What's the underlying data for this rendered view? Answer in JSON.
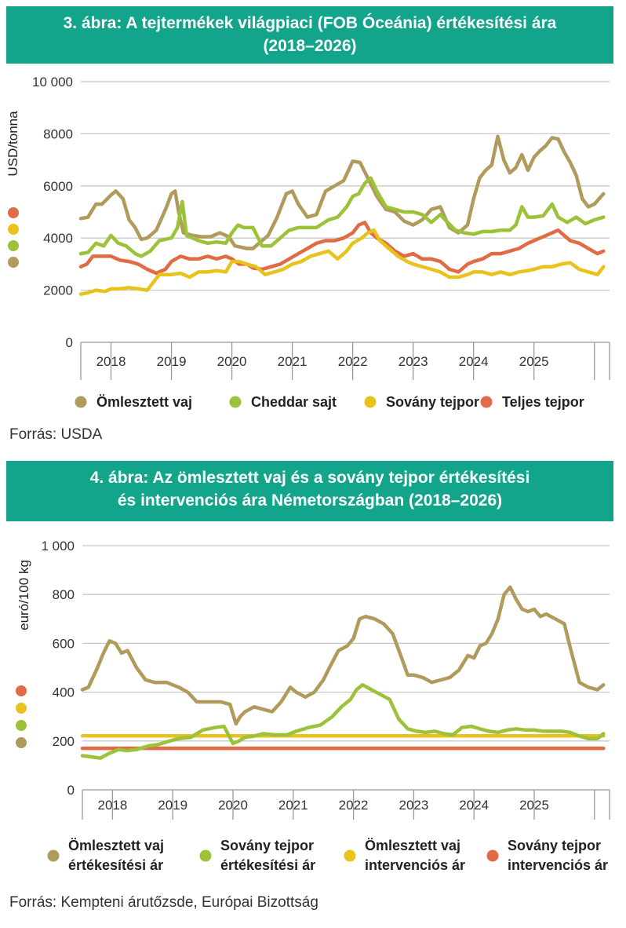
{
  "sources": [
    "Forrás: USDA",
    "Forrás: Kempteni árutőzsde, Európai Bizottság"
  ],
  "chart_data": [
    {
      "type": "line",
      "title": "3. ábra: A tejtermékek világpiaci (FOB Óceánia) értékesítési ára (2018–2026)",
      "title_lines": [
        "3. ábra: A tejtermékek világpiaci (FOB Óceánia) értékesítési ára",
        "(2018–2026)"
      ],
      "ylabel": "USD/tonna",
      "xlabel": "",
      "ylim": [
        0,
        10000
      ],
      "xlim": [
        2017.5,
        2026.25
      ],
      "yticks": [
        0,
        2000,
        4000,
        6000,
        8000,
        10000
      ],
      "ytick_labels": [
        "0",
        "2000",
        "4000",
        "6000",
        "8000",
        "10 000"
      ],
      "categories": [
        "2018",
        "2019",
        "2020",
        "2021",
        "2022",
        "2023",
        "2024",
        "2025"
      ],
      "grid": true,
      "legend_position": "bottom",
      "series": [
        {
          "name": "Ömlesztett vaj",
          "color": "#b09a5c",
          "x": [
            2017.5,
            2017.62,
            2017.75,
            2017.85,
            2018,
            2018.08,
            2018.2,
            2018.3,
            2018.4,
            2018.5,
            2018.6,
            2018.75,
            2018.92,
            2019.0,
            2019.06,
            2019.12,
            2019.2,
            2019.35,
            2019.5,
            2019.65,
            2019.8,
            2019.95,
            2020.05,
            2020.15,
            2020.25,
            2020.35,
            2020.45,
            2020.6,
            2020.75,
            2020.9,
            2021.0,
            2021.1,
            2021.25,
            2021.4,
            2021.55,
            2021.7,
            2021.85,
            2022.0,
            2022.12,
            2022.25,
            2022.4,
            2022.55,
            2022.7,
            2022.85,
            2023.0,
            2023.15,
            2023.3,
            2023.45,
            2023.6,
            2023.75,
            2023.9,
            2024.0,
            2024.1,
            2024.2,
            2024.3,
            2024.4,
            2024.5,
            2024.6,
            2024.7,
            2024.8,
            2024.9,
            2025.0,
            2025.1,
            2025.2,
            2025.3,
            2025.4,
            2025.5,
            2025.6,
            2025.7,
            2025.8,
            2025.9,
            2026.0,
            2026.15
          ],
          "values": [
            4750,
            4800,
            5300,
            5300,
            5650,
            5800,
            5500,
            4700,
            4400,
            3950,
            4000,
            4300,
            5200,
            5700,
            5800,
            5000,
            4200,
            4100,
            4050,
            4050,
            4200,
            4050,
            3700,
            3650,
            3600,
            3600,
            3800,
            4100,
            4800,
            5700,
            5800,
            5300,
            4800,
            4900,
            5800,
            6000,
            6200,
            6950,
            6900,
            6300,
            5600,
            5100,
            5000,
            4650,
            4500,
            4700,
            5100,
            5200,
            4400,
            4200,
            4500,
            5500,
            6300,
            6600,
            6800,
            7900,
            7000,
            6500,
            6700,
            7200,
            6600,
            7100,
            7350,
            7550,
            7850,
            7800,
            7300,
            6900,
            6400,
            5500,
            5200,
            5300,
            5700
          ]
        },
        {
          "name": "Cheddar sajt",
          "color": "#9cc23a",
          "x": [
            2017.5,
            2017.62,
            2017.75,
            2017.88,
            2018,
            2018.12,
            2018.25,
            2018.4,
            2018.5,
            2018.65,
            2018.8,
            2019.0,
            2019.1,
            2019.18,
            2019.25,
            2019.45,
            2019.6,
            2019.75,
            2019.9,
            2020.0,
            2020.1,
            2020.2,
            2020.35,
            2020.5,
            2020.65,
            2020.8,
            2020.95,
            2021.1,
            2021.25,
            2021.4,
            2021.6,
            2021.75,
            2021.9,
            2022.0,
            2022.1,
            2022.2,
            2022.3,
            2022.4,
            2022.55,
            2022.7,
            2022.85,
            2023.0,
            2023.15,
            2023.3,
            2023.45,
            2023.55,
            2023.7,
            2023.85,
            2024.0,
            2024.15,
            2024.3,
            2024.45,
            2024.6,
            2024.7,
            2024.8,
            2024.9,
            2025.0,
            2025.15,
            2025.3,
            2025.4,
            2025.55,
            2025.7,
            2025.85,
            2026.0,
            2026.15
          ],
          "values": [
            3400,
            3450,
            3800,
            3700,
            4100,
            3800,
            3700,
            3400,
            3300,
            3500,
            3900,
            4000,
            4400,
            5400,
            4100,
            3900,
            3800,
            3850,
            3800,
            4200,
            4500,
            4400,
            4400,
            3700,
            3700,
            4000,
            4300,
            4400,
            4400,
            4400,
            4700,
            4800,
            5200,
            5600,
            5700,
            6100,
            6300,
            5800,
            5200,
            5100,
            5000,
            5000,
            4900,
            4600,
            4900,
            4650,
            4300,
            4200,
            4150,
            4250,
            4250,
            4300,
            4300,
            4500,
            5200,
            4800,
            4800,
            4850,
            5300,
            4800,
            4600,
            4800,
            4550,
            4700,
            4800
          ]
        },
        {
          "name": "Sovány tejpor",
          "color": "#e8c31e",
          "x": [
            2017.5,
            2017.62,
            2017.75,
            2017.9,
            2018,
            2018.15,
            2018.3,
            2018.45,
            2018.6,
            2018.7,
            2018.8,
            2019.0,
            2019.15,
            2019.3,
            2019.45,
            2019.6,
            2019.75,
            2019.9,
            2020.0,
            2020.12,
            2020.25,
            2020.4,
            2020.55,
            2020.7,
            2020.85,
            2021.0,
            2021.15,
            2021.3,
            2021.45,
            2021.6,
            2021.75,
            2021.9,
            2022.0,
            2022.15,
            2022.25,
            2022.35,
            2022.45,
            2022.6,
            2022.75,
            2022.9,
            2023.0,
            2023.15,
            2023.3,
            2023.45,
            2023.6,
            2023.75,
            2023.9,
            2024.0,
            2024.15,
            2024.3,
            2024.45,
            2024.6,
            2024.75,
            2024.9,
            2025.0,
            2025.15,
            2025.3,
            2025.45,
            2025.6,
            2025.75,
            2025.9,
            2026.05,
            2026.15
          ],
          "values": [
            1850,
            1900,
            2000,
            1950,
            2050,
            2050,
            2100,
            2050,
            2000,
            2300,
            2600,
            2600,
            2650,
            2500,
            2700,
            2700,
            2750,
            2700,
            3100,
            3100,
            3000,
            2900,
            2600,
            2700,
            2800,
            3000,
            3100,
            3300,
            3400,
            3500,
            3200,
            3500,
            3800,
            4000,
            4200,
            4300,
            3900,
            3600,
            3300,
            3100,
            3000,
            2900,
            2800,
            2700,
            2500,
            2500,
            2600,
            2700,
            2700,
            2600,
            2700,
            2600,
            2700,
            2750,
            2800,
            2900,
            2900,
            3000,
            3050,
            2800,
            2700,
            2600,
            2900
          ]
        },
        {
          "name": "Teljes tejpor",
          "color": "#e06b45",
          "x": [
            2017.5,
            2017.6,
            2017.7,
            2017.85,
            2018,
            2018.15,
            2018.3,
            2018.45,
            2018.6,
            2018.75,
            2018.9,
            2019.0,
            2019.15,
            2019.3,
            2019.45,
            2019.6,
            2019.75,
            2019.9,
            2020.0,
            2020.12,
            2020.25,
            2020.35,
            2020.5,
            2020.65,
            2020.8,
            2020.95,
            2021.1,
            2021.25,
            2021.4,
            2021.55,
            2021.7,
            2021.85,
            2022.0,
            2022.1,
            2022.2,
            2022.3,
            2022.4,
            2022.55,
            2022.7,
            2022.85,
            2023.0,
            2023.15,
            2023.3,
            2023.45,
            2023.6,
            2023.75,
            2023.9,
            2024.0,
            2024.15,
            2024.3,
            2024.45,
            2024.6,
            2024.75,
            2024.9,
            2025.0,
            2025.1,
            2025.2,
            2025.3,
            2025.4,
            2025.5,
            2025.6,
            2025.75,
            2025.9,
            2026.05,
            2026.15
          ],
          "values": [
            2900,
            3000,
            3300,
            3300,
            3300,
            3150,
            3100,
            3000,
            2800,
            2650,
            2800,
            3100,
            3300,
            3200,
            3200,
            3300,
            3200,
            3300,
            3200,
            3000,
            3000,
            2850,
            2800,
            2900,
            3000,
            3200,
            3400,
            3600,
            3800,
            3900,
            3900,
            4000,
            4200,
            4500,
            4600,
            4200,
            4000,
            3800,
            3500,
            3300,
            3400,
            3200,
            3200,
            3100,
            2800,
            2700,
            3000,
            3100,
            3200,
            3400,
            3400,
            3500,
            3600,
            3800,
            3900,
            4000,
            4100,
            4200,
            4300,
            4100,
            3900,
            3800,
            3600,
            3400,
            3500
          ]
        }
      ]
    },
    {
      "type": "line",
      "title": "4. ábra: Az ömlesztett vaj és a sovány tejpor értékesítési és intervenciós ára Németországban (2018–2026)",
      "title_lines": [
        "4. ábra: Az ömlesztett vaj és a sovány tejpor értékesítési",
        "és intervenciós ára Németországban (2018–2026)"
      ],
      "ylabel": "euró/100 kg",
      "xlabel": "",
      "ylim": [
        0,
        1000
      ],
      "xlim": [
        2017.5,
        2026.25
      ],
      "yticks": [
        0,
        200,
        400,
        600,
        800,
        1000
      ],
      "ytick_labels": [
        "0",
        "200",
        "400",
        "600",
        "800",
        "1 000"
      ],
      "categories": [
        "2018",
        "2019",
        "2020",
        "2021",
        "2022",
        "2023",
        "2024",
        "2025"
      ],
      "grid": true,
      "legend_position": "bottom",
      "series": [
        {
          "name": "Ömlesztett vaj értékesítési ár",
          "legend_lines": [
            "Ömlesztett vaj",
            "értékesítési ár"
          ],
          "color": "#b09a5c",
          "x": [
            2017.5,
            2017.6,
            2017.75,
            2017.85,
            2017.95,
            2018.05,
            2018.15,
            2018.25,
            2018.4,
            2018.55,
            2018.7,
            2018.9,
            2019.1,
            2019.25,
            2019.4,
            2019.6,
            2019.8,
            2019.95,
            2020.05,
            2020.12,
            2020.2,
            2020.35,
            2020.5,
            2020.65,
            2020.8,
            2020.95,
            2021.05,
            2021.2,
            2021.35,
            2021.5,
            2021.6,
            2021.75,
            2021.9,
            2022.0,
            2022.1,
            2022.2,
            2022.35,
            2022.5,
            2022.65,
            2022.8,
            2022.9,
            2023.0,
            2023.15,
            2023.3,
            2023.45,
            2023.6,
            2023.75,
            2023.9,
            2024.0,
            2024.1,
            2024.2,
            2024.3,
            2024.4,
            2024.5,
            2024.6,
            2024.7,
            2024.8,
            2024.9,
            2025.0,
            2025.1,
            2025.2,
            2025.35,
            2025.5,
            2025.6,
            2025.75,
            2025.9,
            2026.05,
            2026.15
          ],
          "values": [
            410,
            420,
            500,
            560,
            610,
            600,
            560,
            570,
            500,
            450,
            440,
            440,
            420,
            400,
            360,
            360,
            360,
            350,
            270,
            300,
            320,
            340,
            330,
            320,
            360,
            420,
            400,
            380,
            400,
            450,
            500,
            570,
            590,
            620,
            700,
            710,
            700,
            680,
            640,
            540,
            470,
            470,
            460,
            440,
            450,
            460,
            490,
            550,
            540,
            590,
            600,
            640,
            700,
            800,
            830,
            780,
            740,
            730,
            740,
            710,
            720,
            700,
            680,
            580,
            440,
            420,
            410,
            430
          ]
        },
        {
          "name": "Sovány tejpor értékesítési ár",
          "legend_lines": [
            "Sovány tejpor",
            "értékesítési ár"
          ],
          "color": "#9cc23a",
          "x": [
            2017.5,
            2017.65,
            2017.8,
            2017.95,
            2018.1,
            2018.25,
            2018.4,
            2018.6,
            2018.75,
            2018.95,
            2019.1,
            2019.3,
            2019.5,
            2019.7,
            2019.85,
            2020.0,
            2020.1,
            2020.2,
            2020.35,
            2020.5,
            2020.7,
            2020.9,
            2021.05,
            2021.25,
            2021.45,
            2021.65,
            2021.8,
            2021.95,
            2022.05,
            2022.15,
            2022.3,
            2022.45,
            2022.6,
            2022.75,
            2022.9,
            2023.05,
            2023.2,
            2023.35,
            2023.5,
            2023.65,
            2023.8,
            2023.95,
            2024.1,
            2024.25,
            2024.4,
            2024.55,
            2024.7,
            2024.85,
            2025.0,
            2025.15,
            2025.3,
            2025.45,
            2025.6,
            2025.75,
            2025.9,
            2026.05,
            2026.15
          ],
          "values": [
            140,
            135,
            130,
            150,
            165,
            160,
            165,
            180,
            185,
            200,
            210,
            215,
            245,
            255,
            260,
            190,
            200,
            215,
            220,
            230,
            225,
            225,
            240,
            255,
            265,
            300,
            340,
            370,
            410,
            430,
            410,
            390,
            370,
            290,
            250,
            240,
            235,
            240,
            230,
            225,
            255,
            260,
            250,
            240,
            235,
            245,
            250,
            245,
            245,
            240,
            240,
            240,
            235,
            220,
            210,
            210,
            230
          ]
        },
        {
          "name": "Ömlesztett vaj intervenciós ár",
          "legend_lines": [
            "Ömlesztett vaj",
            "intervenciós ár"
          ],
          "color": "#e8c31e",
          "x": [
            2017.5,
            2026.15
          ],
          "values": [
            221,
            221
          ]
        },
        {
          "name": "Sovány tejpor intervenciós ár",
          "legend_lines": [
            "Sovány tejpor",
            "intervenciós ár"
          ],
          "color": "#e06b45",
          "x": [
            2017.5,
            2026.15
          ],
          "values": [
            170,
            170
          ]
        }
      ]
    }
  ]
}
